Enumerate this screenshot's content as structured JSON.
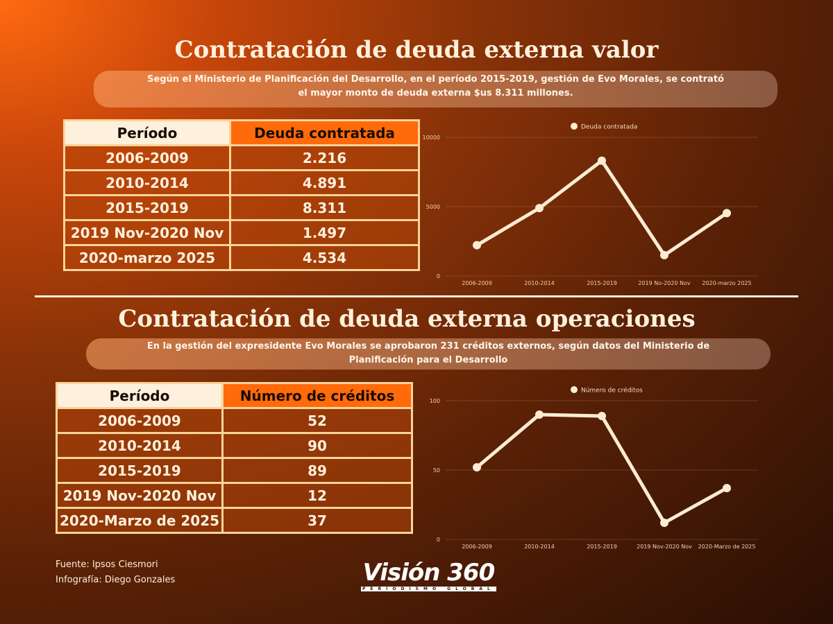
{
  "section1": {
    "title": "Contratación de deuda externa valor",
    "subtitle_line1": "Según el Ministerio de Planificación del Desarrollo, en el período 2015-2019, gestión de Evo Morales, se contrató",
    "subtitle_line2": "el mayor monto de deuda externa $us 8.311 millones.",
    "table": {
      "headers": [
        "Período",
        "Deuda contratada"
      ],
      "rows": [
        [
          "2006-2009",
          "2.216"
        ],
        [
          "2010-2014",
          "4.891"
        ],
        [
          "2015-2019",
          "8.311"
        ],
        [
          "2019 Nov-2020 Nov",
          "1.497"
        ],
        [
          "2020-marzo 2025",
          "4.534"
        ]
      ]
    }
  },
  "section2": {
    "title": "Contratación de deuda externa operaciones",
    "subtitle_line1": "En la gestión del expresidente Evo Morales se aprobaron 231 créditos externos, según datos del Ministerio de",
    "subtitle_line2": "Planificación para el Desarrollo",
    "table": {
      "headers": [
        "Período",
        "Número de créditos"
      ],
      "rows": [
        [
          "2006-2009",
          "52"
        ],
        [
          "2010-2014",
          "90"
        ],
        [
          "2015-2019",
          "89"
        ],
        [
          "2019 Nov-2020 Nov",
          "12"
        ],
        [
          "2020-Marzo de 2025",
          "37"
        ]
      ]
    }
  },
  "footer": {
    "source": "Fuente: Ipsos Ciesmori",
    "credit": "Infografía: Diego Gonzales",
    "logo": "Visión 360",
    "logo_tagline": "PERIODISMO GLOBAL"
  },
  "colors": {
    "line": "#fdecd2",
    "accent": "#ff6a0a",
    "header_light": "#fdf0dc"
  },
  "chart_data": [
    {
      "type": "line",
      "title": "",
      "legend": "Deuda contratada",
      "legend_position": "top-center",
      "categories": [
        "2006-2009",
        "2010-2014",
        "2015-2019",
        "2019 No-2020 Nov",
        "2020-marzo 2025"
      ],
      "series": [
        {
          "name": "Deuda contratada",
          "values": [
            2216,
            4891,
            8311,
            1497,
            4534
          ]
        }
      ],
      "ylim": [
        0,
        10000
      ],
      "yticks": [
        0,
        5000,
        10000
      ],
      "grid": true,
      "xlabel": "",
      "ylabel": ""
    },
    {
      "type": "line",
      "title": "",
      "legend": "Número de créditos",
      "legend_position": "top-center",
      "categories": [
        "2006-2009",
        "2010-2014",
        "2015-2019",
        "2019 Nov-2020 Nov",
        "2020-Marzo de 2025"
      ],
      "series": [
        {
          "name": "Número de créditos",
          "values": [
            52,
            90,
            89,
            12,
            37
          ]
        }
      ],
      "ylim": [
        0,
        100
      ],
      "yticks": [
        0,
        50,
        100
      ],
      "grid": true,
      "xlabel": "",
      "ylabel": ""
    }
  ]
}
